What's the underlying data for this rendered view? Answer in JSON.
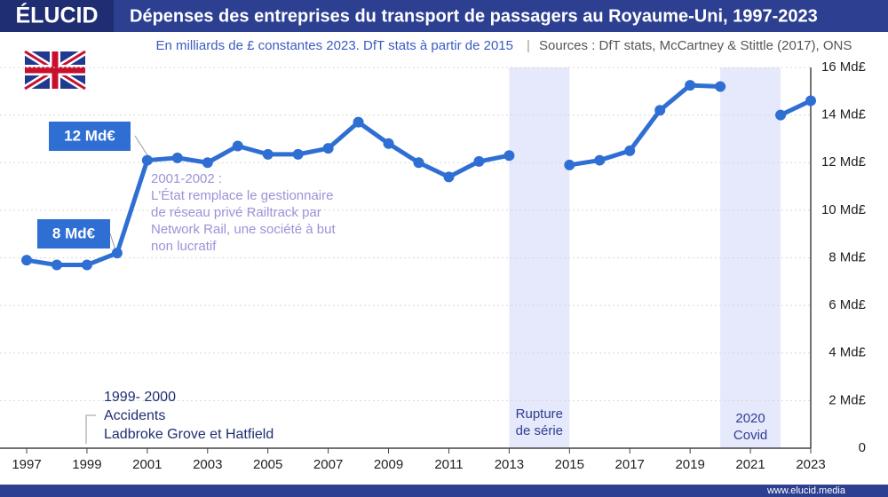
{
  "brand": "ÉLUCID",
  "footer": "www.elucid.media",
  "chart_data": {
    "type": "line",
    "title": "Dépenses des entreprises du transport de passagers au Royaume-Uni, 1997-2023",
    "subtitle": "En milliards de £ constantes 2023. DfT stats à partir de 2015",
    "source": "Sources : DfT stats, McCartney & Stittle (2017), ONS",
    "x": [
      1997,
      1998,
      1999,
      2000,
      2001,
      2002,
      2003,
      2004,
      2005,
      2006,
      2007,
      2008,
      2009,
      2010,
      2011,
      2012,
      2013,
      2014,
      2015,
      2016,
      2017,
      2018,
      2019,
      2020,
      2021,
      2022,
      2023
    ],
    "series": [
      {
        "name": "Dépenses",
        "color": "#2f6fd3",
        "values": [
          7.9,
          7.7,
          7.7,
          8.2,
          12.1,
          12.2,
          12.0,
          12.7,
          12.35,
          12.35,
          12.6,
          13.7,
          12.8,
          12.0,
          11.4,
          12.05,
          12.3,
          null,
          11.9,
          12.1,
          12.5,
          14.2,
          15.25,
          15.2,
          null,
          14.0,
          14.6
        ]
      }
    ],
    "xlim": [
      1997,
      2023
    ],
    "xticks": [
      1997,
      1999,
      2001,
      2003,
      2005,
      2007,
      2009,
      2011,
      2013,
      2015,
      2017,
      2019,
      2021,
      2023
    ],
    "ylim": [
      0,
      16
    ],
    "yticks": [
      0,
      {
        "value": 2,
        "label": "2 Md£"
      },
      {
        "value": 4,
        "label": "4 Md£"
      },
      {
        "value": 6,
        "label": "6 Md£"
      },
      {
        "value": 8,
        "label": "8 Md£"
      },
      {
        "value": 10,
        "label": "10 Md£"
      },
      {
        "value": 12,
        "label": "12 Md£"
      },
      {
        "value": 14,
        "label": "14 Md£"
      },
      {
        "value": 16,
        "label": "16 Md£"
      }
    ],
    "grid": true,
    "shaded_regions": [
      {
        "xlim": [
          2013,
          2015
        ],
        "label": [
          "Rupture",
          "de série"
        ]
      },
      {
        "xlim": [
          2020,
          2022
        ],
        "label": [
          "2020",
          "Covid"
        ]
      }
    ],
    "callouts": [
      "12 Md€",
      "8 Md€"
    ],
    "annotations": [
      [
        "2001-2002 :",
        "L'État remplace le gestionnaire",
        "de réseau privé Railtrack par",
        "Network Rail, une société à but",
        "non lucratif"
      ],
      [
        "1999- 2000",
        "Accidents",
        "Ladbroke Grove et Hatfield"
      ]
    ]
  }
}
